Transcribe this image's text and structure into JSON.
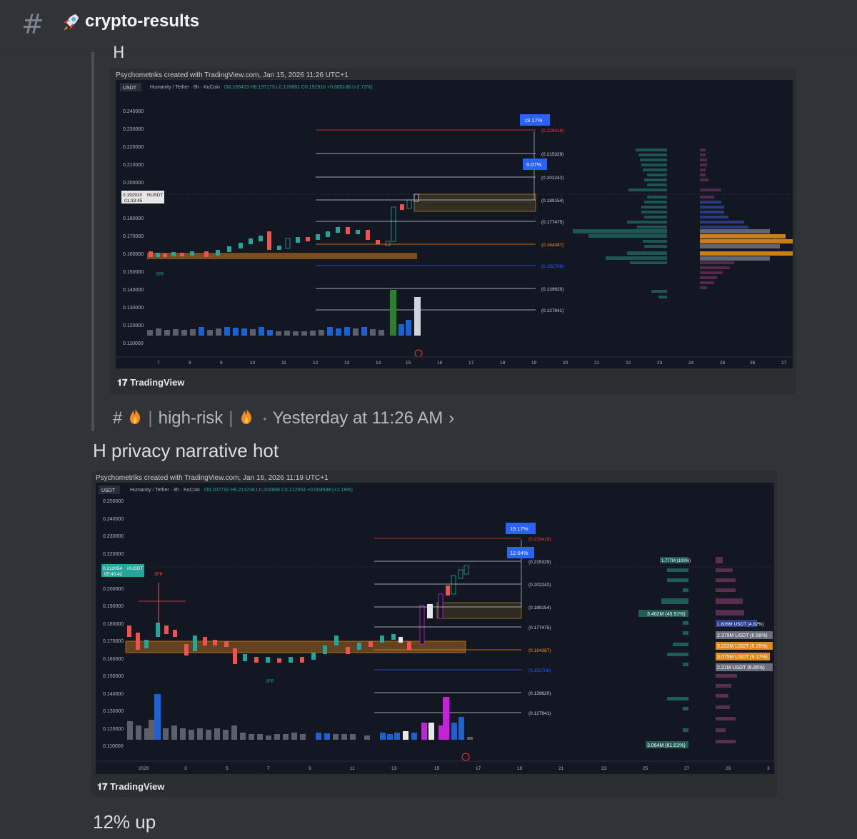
{
  "channel": {
    "name": "crypto-results"
  },
  "forwarded": {
    "quote_fragment": "H",
    "chart": {
      "caption": "Psychometriks created with TradingView.com, Jan 15, 2026 11:26 UTC+1",
      "symbol_tag": "USDT",
      "symbol_info": "Humanity / Tether · 6h · KuCoin",
      "ohlc": "O0.188423 H0.197175 L0.178881 C0.192910 +0.005106 (+2.72%)",
      "price_axis": [
        "0.240000",
        "0.230000",
        "0.220000",
        "0.210000",
        "0.200000",
        "0.180000",
        "0.170000",
        "0.160000",
        "0.150000",
        "0.140000",
        "0.130000",
        "0.120000",
        "0.110000"
      ],
      "current_price": "0.192910",
      "current_pair": "HUSDT",
      "countdown": "01:33:45",
      "x_axis": [
        "7",
        "8",
        "9",
        "10",
        "11",
        "12",
        "13",
        "14",
        "15",
        "16",
        "17",
        "18",
        "19",
        "20",
        "21",
        "22",
        "23",
        "24",
        "25",
        "26",
        "27"
      ],
      "badges": [
        "19.17%",
        "6.07%"
      ],
      "levels": [
        "(0.228416)",
        "(0.215329)",
        "(0.202242)",
        "(0.189154)",
        "(0.177475)",
        "(0.164387)",
        "(0.152708)",
        "(0.139620)",
        "(0.127941)"
      ],
      "sfp": "SFP",
      "brand": "TradingView"
    },
    "meta": {
      "channel": "high-risk",
      "time": "Yesterday at 11:26 AM"
    }
  },
  "message1": {
    "text": "H privacy narrative hot"
  },
  "chart2": {
    "caption": "Psychometriks created with TradingView.com, Jan 16, 2026 11:19 UTC+1",
    "symbol_tag": "USDT",
    "symbol_info": "Humanity / Tether · 8h · KuCoin",
    "ohlc": "O0.207732 H0.213736 L0.204868 C0.212054 +0.004538 (+2.19%)",
    "price_axis": [
      "0.250000",
      "0.240000",
      "0.230000",
      "0.220000",
      "0.200000",
      "0.190000",
      "0.180000",
      "0.170000",
      "0.160000",
      "0.150000",
      "0.140000",
      "0.130000",
      "0.120000",
      "0.110000"
    ],
    "current_price": "0.212054",
    "current_pair": "HUSDT",
    "countdown": "05:40:42",
    "x_axis": [
      "2026",
      "3",
      "5",
      "7",
      "9",
      "11",
      "13",
      "15",
      "17",
      "19",
      "21",
      "23",
      "25",
      "27",
      "29",
      "3"
    ],
    "badges": [
      "19.17%",
      "12.64%"
    ],
    "levels": [
      "(0.228416)",
      "(0.215329)",
      "(0.202242)",
      "(0.189154)",
      "(0.177475)",
      "(0.164387)",
      "(0.152708)",
      "(0.139620)",
      "(0.127941)"
    ],
    "vp_labels": [
      "1.777M (100%)",
      "3.402M (45.91%)",
      "1.806M USDT (4.82%)",
      "2.379M USDT (6.58%)",
      "3.222M USDT (9.25%)",
      "3.075M USDT (9.17%)",
      "2.21M USDT (6.85%)",
      "3.064M (61.01%)"
    ],
    "sfp": "SFP",
    "brand": "TradingView"
  },
  "message2": {
    "text": "12% up"
  },
  "colors": {
    "bg": "#313338",
    "chart_bg": "#131722",
    "up": "#26a69a",
    "down": "#ef5350",
    "blue": "#2962ff",
    "orange": "#f7931a"
  }
}
